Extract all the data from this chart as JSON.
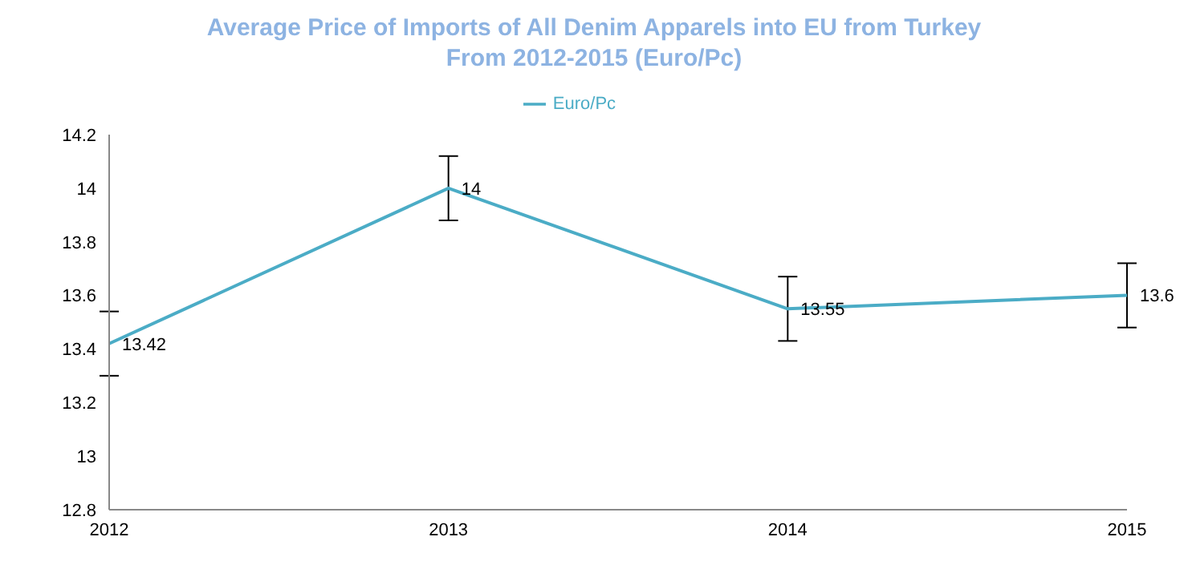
{
  "chart_data": {
    "type": "line",
    "title": "Average Price of Imports of All Denim Apparels into EU from Turkey From 2012-2015 (Euro/Pc)",
    "categories": [
      "2012",
      "2013",
      "2014",
      "2015"
    ],
    "series": [
      {
        "name": "Euro/Pc",
        "color": "#4bacc6",
        "values": [
          13.42,
          14,
          13.55,
          13.6
        ],
        "errors": [
          0.12,
          0.12,
          0.12,
          0.12
        ]
      }
    ],
    "ylim": [
      12.8,
      14.2
    ],
    "yticks": [
      12.8,
      13,
      13.2,
      13.4,
      13.6,
      13.8,
      14,
      14.2
    ],
    "grid": false,
    "legend": "top",
    "marker": "none",
    "data_labels": true
  }
}
